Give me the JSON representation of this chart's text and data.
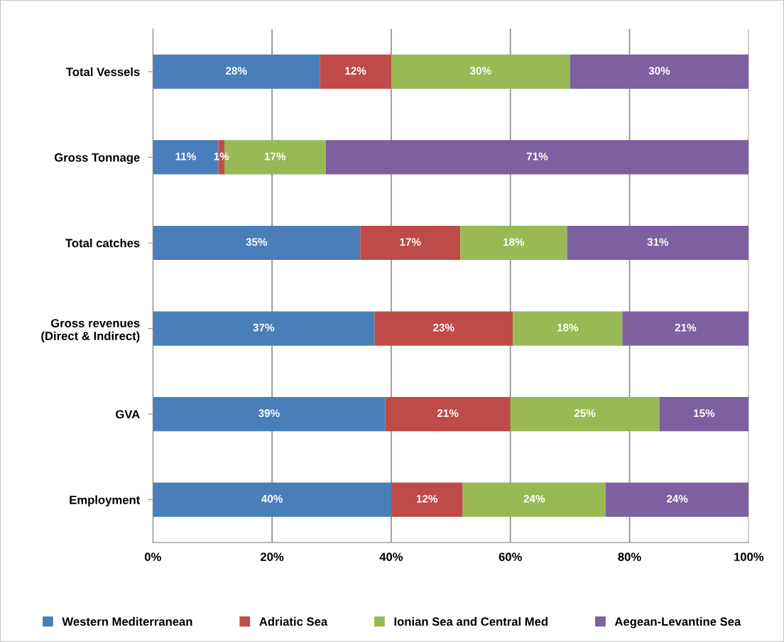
{
  "chart_data": {
    "type": "bar",
    "orientation": "horizontal",
    "stacked": true,
    "categories": [
      "Total Vessels",
      "Gross Tonnage",
      "Total catches",
      "Gross revenues\n(Direct & Indirect)",
      "GVA",
      "Employment"
    ],
    "series": [
      {
        "name": "Western Mediterranean",
        "color": "#4a7ebb",
        "values": [
          28,
          11,
          34.8,
          37.2,
          39,
          40
        ],
        "value_labels": [
          "28%",
          "11%",
          "35%",
          "37%",
          "39%",
          "40%"
        ]
      },
      {
        "name": "Adriatic Sea",
        "color": "#be4b48",
        "values": [
          12,
          1,
          16.8,
          23.2,
          21,
          12
        ],
        "value_labels": [
          "12%",
          "1%",
          "17%",
          "23%",
          "21%",
          "12%"
        ]
      },
      {
        "name": "Ionian Sea and Central Med",
        "color": "#98b954",
        "values": [
          30,
          17,
          17.9,
          18.4,
          25,
          24
        ],
        "value_labels": [
          "30%",
          "17%",
          "18%",
          "18%",
          "25%",
          "24%"
        ]
      },
      {
        "name": "Aegean-Levantine Sea",
        "color": "#7d60a0",
        "values": [
          30,
          71,
          30.5,
          21.2,
          15,
          24
        ],
        "value_labels": [
          "30%",
          "71%",
          "31%",
          "21%",
          "15%",
          "24%"
        ]
      }
    ],
    "xlim": [
      0,
      100
    ],
    "xticks": [
      {
        "value": 0,
        "label": "0%"
      },
      {
        "value": 20,
        "label": "20%"
      },
      {
        "value": 40,
        "label": "40%"
      },
      {
        "value": 60,
        "label": "60%"
      },
      {
        "value": 80,
        "label": "80%"
      },
      {
        "value": 100,
        "label": "100%"
      }
    ],
    "grid": "x",
    "legend": "bottom"
  }
}
